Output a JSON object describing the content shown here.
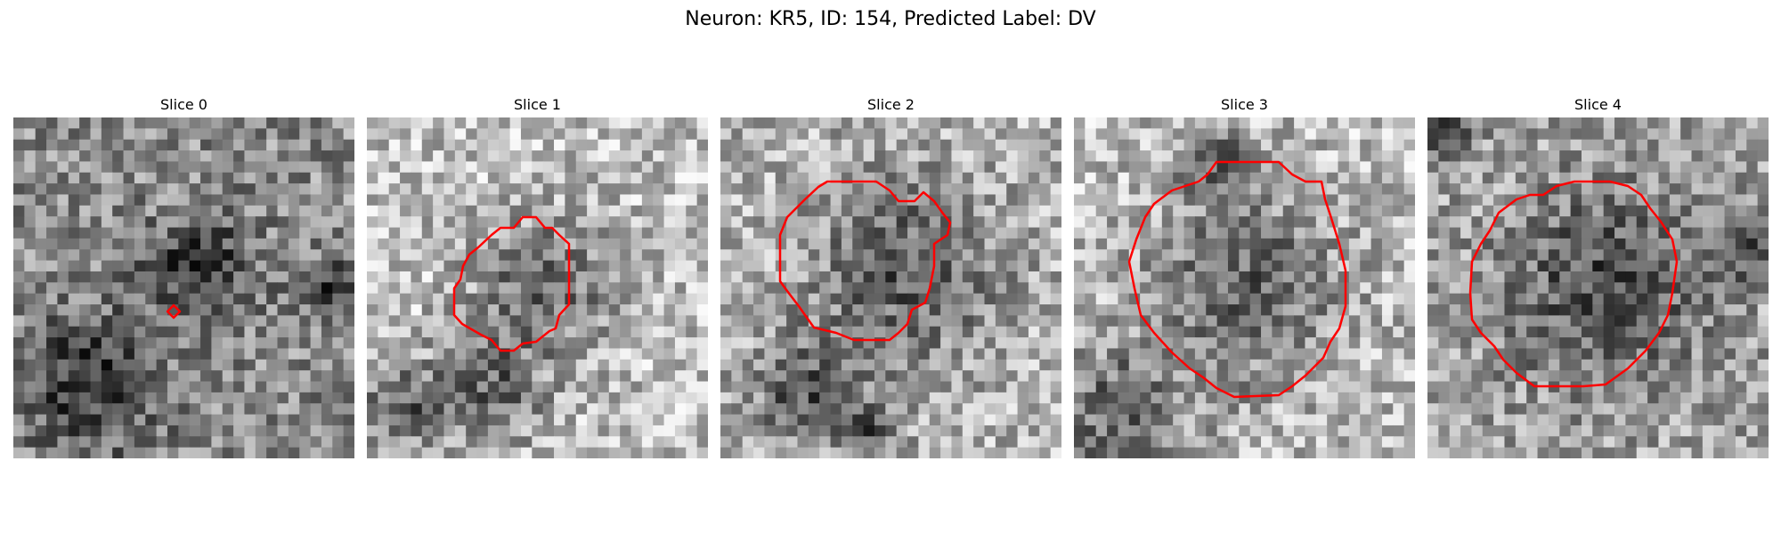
{
  "figure": {
    "title": "Neuron: KR5, ID: 154, Predicted Label: DV"
  },
  "contour_color": "#ff0000",
  "panels": [
    {
      "title": "Slice 0",
      "seed": 11,
      "dark_blobs": [
        [
          0.22,
          0.78,
          0.2
        ],
        [
          0.95,
          0.52,
          0.09
        ],
        [
          0.55,
          0.45,
          0.16
        ]
      ],
      "bright": 0.6
    },
    {
      "title": "Slice 1",
      "seed": 23,
      "dark_blobs": [
        [
          0.35,
          0.8,
          0.16
        ],
        [
          0.52,
          0.5,
          0.2
        ],
        [
          0.1,
          0.85,
          0.12
        ]
      ],
      "bright": 0.8
    },
    {
      "title": "Slice 2",
      "seed": 37,
      "dark_blobs": [
        [
          0.25,
          0.8,
          0.16
        ],
        [
          0.55,
          0.45,
          0.26
        ],
        [
          0.45,
          0.92,
          0.08
        ]
      ],
      "bright": 0.75
    },
    {
      "title": "Slice 3",
      "seed": 41,
      "dark_blobs": [
        [
          0.12,
          0.88,
          0.2
        ],
        [
          0.5,
          0.5,
          0.3
        ],
        [
          0.4,
          0.12,
          0.1
        ]
      ],
      "bright": 0.8
    },
    {
      "title": "Slice 4",
      "seed": 53,
      "dark_blobs": [
        [
          0.52,
          0.5,
          0.3
        ],
        [
          0.95,
          0.4,
          0.08
        ],
        [
          0.05,
          0.05,
          0.08
        ]
      ],
      "bright": 0.7
    }
  ]
}
